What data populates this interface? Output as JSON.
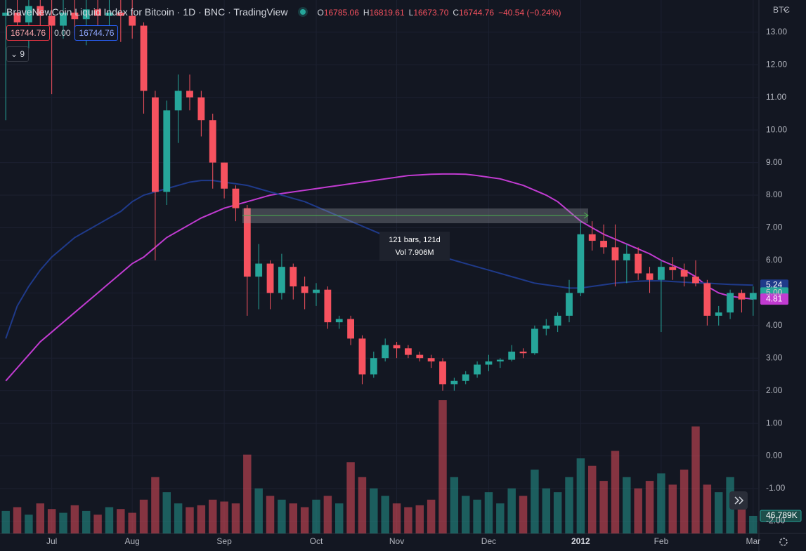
{
  "header": {
    "title": "BraveNewCoin Liquid Index for Bitcoin · 1D · BNC · TradingView",
    "ohlc": [
      {
        "label": "O",
        "value": "16785.06"
      },
      {
        "label": "H",
        "value": "16819.61"
      },
      {
        "label": "L",
        "value": "16673.70"
      },
      {
        "label": "C",
        "value": "16744.76"
      }
    ],
    "change": "−40.54 (−0.24%)",
    "badges": [
      "16744.76",
      "0.00",
      "16744.76"
    ],
    "indicator_count": "9",
    "currency": "BTC"
  },
  "measure": {
    "bars": "121 bars, 121d",
    "volume": "Vol 7.906M"
  },
  "chart_data": {
    "type": "candlestick",
    "categories": [
      null,
      null,
      null,
      null,
      "Jul",
      null,
      null,
      null,
      null,
      null,
      null,
      "Aug",
      null,
      null,
      null,
      null,
      null,
      null,
      null,
      "Sep",
      null,
      null,
      null,
      null,
      null,
      null,
      null,
      "Oct",
      null,
      null,
      null,
      null,
      null,
      null,
      "Nov",
      null,
      null,
      null,
      null,
      null,
      null,
      null,
      "Dec",
      null,
      null,
      null,
      null,
      null,
      null,
      null,
      "2012",
      null,
      null,
      null,
      null,
      null,
      null,
      "Feb",
      null,
      null,
      null,
      null,
      null,
      null,
      null,
      "Mar"
    ],
    "open": [
      13.5,
      13.6,
      13.3,
      13.8,
      13.5,
      13.2,
      13.6,
      13.4,
      13.7,
      13.5,
      13.6,
      13.5,
      13.2,
      11.0,
      8.1,
      10.6,
      11.2,
      11.0,
      10.3,
      9.0,
      8.2,
      7.6,
      5.5,
      5.9,
      5.0,
      5.8,
      5.2,
      5.0,
      5.1,
      4.1,
      4.2,
      3.6,
      2.5,
      3.0,
      3.4,
      3.3,
      3.1,
      3.0,
      2.9,
      2.2,
      2.3,
      2.5,
      2.8,
      2.9,
      2.95,
      3.2,
      3.15,
      3.9,
      4.0,
      4.3,
      5.0,
      6.8,
      6.6,
      6.4,
      6.0,
      6.2,
      5.6,
      5.4,
      5.8,
      5.7,
      5.5,
      5.3,
      4.3,
      4.4,
      5.0,
      4.8
    ],
    "high": [
      14,
      14,
      14,
      14,
      14,
      14,
      14,
      14,
      14,
      14,
      14,
      14,
      13.3,
      11.2,
      10.9,
      11.7,
      11.7,
      11.2,
      10.5,
      9.0,
      8.3,
      7.7,
      6.5,
      6.0,
      6.2,
      5.9,
      5.5,
      5.3,
      5.2,
      4.3,
      4.3,
      3.7,
      3.2,
      3.6,
      3.5,
      3.4,
      3.2,
      3.1,
      3.0,
      2.4,
      2.6,
      2.9,
      3.1,
      3.0,
      3.4,
      3.3,
      4.0,
      4.2,
      4.4,
      5.4,
      7.2,
      7.2,
      7.1,
      7.1,
      6.5,
      6.4,
      5.8,
      6.0,
      6.1,
      5.9,
      6.0,
      5.4,
      4.6,
      5.1,
      5.1,
      5.2
    ],
    "low": [
      10.3,
      12.8,
      12.5,
      12.9,
      11.1,
      12.8,
      12.9,
      12.6,
      13.0,
      12.9,
      12.7,
      12.8,
      10.5,
      6.0,
      7.7,
      9.6,
      10.6,
      9.8,
      8.2,
      7.9,
      7.2,
      4.3,
      4.5,
      4.5,
      4.8,
      4.8,
      4.5,
      4.6,
      3.9,
      3.9,
      3.4,
      2.2,
      2.4,
      2.9,
      3.0,
      3.0,
      2.9,
      2.7,
      2.0,
      2.0,
      2.2,
      2.4,
      2.6,
      2.7,
      2.9,
      3.0,
      3.1,
      3.7,
      3.8,
      4.1,
      4.9,
      6.3,
      6.2,
      5.2,
      5.3,
      5.4,
      5.0,
      3.8,
      5.4,
      5.2,
      5.2,
      4.0,
      4.0,
      4.2,
      4.4,
      4.3
    ],
    "close": [
      13.6,
      13.3,
      13.8,
      13.5,
      13.2,
      13.6,
      13.4,
      13.7,
      13.5,
      13.6,
      13.5,
      13.2,
      11.2,
      8.1,
      10.6,
      11.2,
      11.0,
      10.3,
      9.0,
      8.2,
      7.6,
      5.5,
      5.9,
      5.0,
      5.8,
      5.2,
      5.0,
      5.1,
      4.1,
      4.2,
      3.6,
      2.5,
      3.0,
      3.4,
      3.3,
      3.1,
      3.0,
      2.9,
      2.2,
      2.3,
      2.5,
      2.8,
      2.9,
      2.95,
      3.2,
      3.15,
      3.9,
      4.0,
      4.3,
      5.0,
      6.8,
      6.6,
      6.4,
      6.0,
      6.2,
      5.6,
      5.4,
      5.8,
      5.7,
      5.5,
      5.3,
      4.3,
      4.4,
      5.0,
      4.8,
      5.0
    ],
    "up_color": "#26a69a",
    "down_color": "#f7525f",
    "volume": {
      "values": [
        60000,
        70000,
        50000,
        80000,
        65000,
        55000,
        75000,
        60000,
        50000,
        70000,
        65000,
        55000,
        90000,
        150000,
        110000,
        80000,
        70000,
        75000,
        90000,
        85000,
        80000,
        210000,
        120000,
        100000,
        90000,
        80000,
        70000,
        90000,
        100000,
        80000,
        190000,
        150000,
        120000,
        100000,
        80000,
        70000,
        75000,
        90000,
        355000,
        150000,
        100000,
        90000,
        110000,
        80000,
        120000,
        100000,
        170000,
        120000,
        110000,
        150000,
        200000,
        180000,
        140000,
        220000,
        150000,
        120000,
        140000,
        160000,
        130000,
        170000,
        285000,
        130000,
        110000,
        150000,
        90000,
        46789
      ],
      "last_label": "46.789K",
      "axis": "y2"
    },
    "series": [
      {
        "color": "#c13bd1",
        "values": [
          2.3,
          2.7,
          3.1,
          3.5,
          3.8,
          4.1,
          4.4,
          4.7,
          5.0,
          5.3,
          5.6,
          5.9,
          6.1,
          6.4,
          6.7,
          6.9,
          7.1,
          7.3,
          7.45,
          7.6,
          7.7,
          7.8,
          7.9,
          8.0,
          8.05,
          8.1,
          8.15,
          8.2,
          8.25,
          8.3,
          8.35,
          8.4,
          8.45,
          8.5,
          8.55,
          8.6,
          8.62,
          8.64,
          8.65,
          8.65,
          8.64,
          8.6,
          8.55,
          8.5,
          8.4,
          8.3,
          8.15,
          8.0,
          7.8,
          7.5,
          7.2,
          7.0,
          6.8,
          6.65,
          6.5,
          6.35,
          6.2,
          6.0,
          5.85,
          5.7,
          5.5,
          5.2,
          5.0,
          4.9,
          4.85,
          4.81
        ]
      },
      {
        "color": "#1f3a8a",
        "values": [
          3.6,
          4.6,
          5.2,
          5.7,
          6.1,
          6.4,
          6.7,
          6.9,
          7.1,
          7.3,
          7.5,
          7.8,
          8.0,
          8.1,
          8.2,
          8.3,
          8.4,
          8.45,
          8.45,
          8.4,
          8.35,
          8.3,
          8.2,
          8.1,
          8.0,
          7.9,
          7.8,
          7.65,
          7.5,
          7.35,
          7.2,
          7.05,
          6.9,
          6.75,
          6.6,
          6.45,
          6.3,
          6.2,
          6.1,
          6.0,
          5.9,
          5.8,
          5.7,
          5.6,
          5.5,
          5.4,
          5.3,
          5.25,
          5.2,
          5.15,
          5.15,
          5.2,
          5.25,
          5.3,
          5.33,
          5.36,
          5.37,
          5.37,
          5.35,
          5.33,
          5.31,
          5.3,
          5.28,
          5.26,
          5.25,
          5.24
        ]
      }
    ],
    "price_tags": [
      {
        "value": 5.24,
        "color": "#1f3a8a"
      },
      {
        "value": 5,
        "label": "5.00",
        "color": "#26a69a"
      },
      {
        "value": 4.81,
        "color": "#c13bd1"
      }
    ],
    "ylim": [
      -2.379,
      13.987
    ],
    "y2lim": [
      0,
      400000
    ],
    "yticks": [
      {
        "value": -2,
        "label": "-2.00"
      },
      {
        "value": -1,
        "label": "-1.00"
      },
      {
        "value": 0,
        "label": "0.00"
      },
      {
        "value": 1,
        "label": "1.00"
      },
      {
        "value": 2,
        "label": "2.00"
      },
      {
        "value": 3,
        "label": "3.00"
      },
      {
        "value": 4,
        "label": "4.00"
      },
      {
        "value": 5,
        "label": "5.00"
      },
      {
        "value": 6,
        "label": "6.00"
      },
      {
        "value": 7,
        "label": "7.00"
      },
      {
        "value": 8,
        "label": "8.00"
      },
      {
        "value": 9,
        "label": "9.00"
      },
      {
        "value": 10,
        "label": "10.00"
      },
      {
        "value": 11,
        "label": "11.00"
      },
      {
        "value": 12,
        "label": "12.00"
      },
      {
        "value": 13,
        "label": "13.00"
      }
    ],
    "grid": true
  }
}
